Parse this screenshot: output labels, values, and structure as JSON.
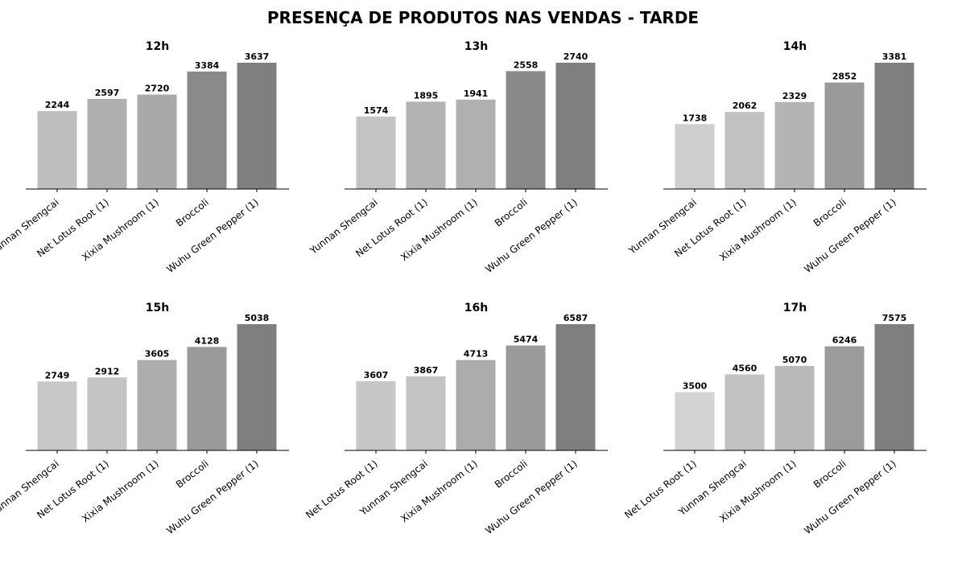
{
  "title": "PRESENÇA DE PRODUTOS NAS VENDAS - TARDE",
  "chart_data": [
    {
      "type": "bar",
      "title": "12h",
      "categories": [
        "Yunnan Shengcai",
        "Net Lotus Root (1)",
        "Xixia Mushroom (1)",
        "Broccoli",
        "Wuhu Green Pepper (1)"
      ],
      "values": [
        2244,
        2597,
        2720,
        3384,
        3637
      ],
      "colors": [
        "#bebebe",
        "#afafaf",
        "#a9a9a9",
        "#8a8a8a",
        "#7f7f7f"
      ]
    },
    {
      "type": "bar",
      "title": "13h",
      "categories": [
        "Yunnan Shengcai",
        "Net Lotus Root (1)",
        "Xixia Mushroom (1)",
        "Broccoli",
        "Wuhu Green Pepper (1)"
      ],
      "values": [
        1574,
        1895,
        1941,
        2558,
        2740
      ],
      "colors": [
        "#c4c4c4",
        "#b3b3b3",
        "#b0b0b0",
        "#898989",
        "#7f7f7f"
      ]
    },
    {
      "type": "bar",
      "title": "14h",
      "categories": [
        "Yunnan Shengcai",
        "Net Lotus Root (1)",
        "Xixia Mushroom (1)",
        "Broccoli",
        "Wuhu Green Pepper (1)"
      ],
      "values": [
        1738,
        2062,
        2329,
        2852,
        3381
      ],
      "colors": [
        "#cecece",
        "#c1c1c1",
        "#b4b4b4",
        "#9a9a9a",
        "#7f7f7f"
      ]
    },
    {
      "type": "bar",
      "title": "15h",
      "categories": [
        "Yunnan Shengcai",
        "Net Lotus Root (1)",
        "Xixia Mushroom (1)",
        "Broccoli",
        "Wuhu Green Pepper (1)"
      ],
      "values": [
        2749,
        2912,
        3605,
        4128,
        5038
      ],
      "colors": [
        "#c8c8c8",
        "#c4c4c4",
        "#adadad",
        "#9a9a9a",
        "#7f7f7f"
      ]
    },
    {
      "type": "bar",
      "title": "16h",
      "categories": [
        "Net Lotus Root (1)",
        "Yunnan Shengcai",
        "Xixia Mushroom (1)",
        "Broccoli",
        "Wuhu Green Pepper (1)"
      ],
      "values": [
        3607,
        3867,
        4713,
        5474,
        6587
      ],
      "colors": [
        "#c7c7c7",
        "#c3c3c3",
        "#acacac",
        "#9a9a9a",
        "#7f7f7f"
      ]
    },
    {
      "type": "bar",
      "title": "17h",
      "categories": [
        "Net Lotus Root (1)",
        "Yunnan Shengcai",
        "Xixia Mushroom (1)",
        "Broccoli",
        "Wuhu Green Pepper (1)"
      ],
      "values": [
        3500,
        4560,
        5070,
        6246,
        7575
      ],
      "colors": [
        "#d3d3d3",
        "#c2c2c2",
        "#b9b9b9",
        "#9b9b9b",
        "#7f7f7f"
      ]
    }
  ]
}
